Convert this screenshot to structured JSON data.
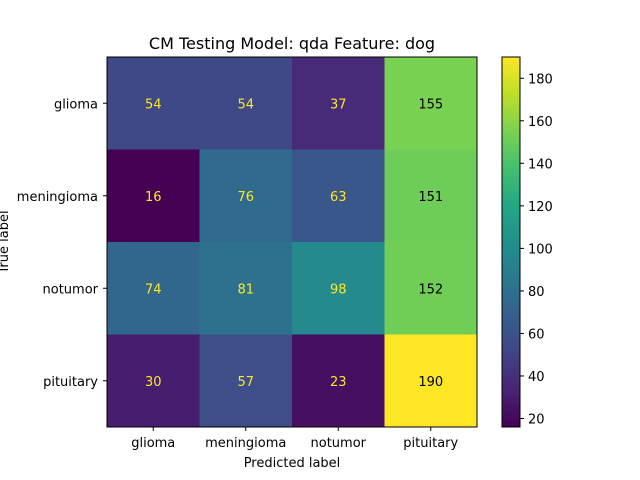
{
  "chart_data": {
    "type": "heatmap",
    "title": "CM Testing Model: qda Feature: dog",
    "xlabel": "Predicted label",
    "ylabel": "True label",
    "x_categories": [
      "glioma",
      "meningioma",
      "notumor",
      "pituitary"
    ],
    "y_categories": [
      "glioma",
      "meningioma",
      "notumor",
      "pituitary"
    ],
    "values": [
      [
        54,
        54,
        37,
        155
      ],
      [
        16,
        76,
        63,
        151
      ],
      [
        74,
        81,
        98,
        152
      ],
      [
        30,
        57,
        23,
        190
      ]
    ],
    "colormap": "viridis",
    "colorbar": {
      "min": 16,
      "max": 190,
      "ticks": [
        20,
        40,
        60,
        80,
        100,
        120,
        140,
        160,
        180
      ]
    },
    "grid": false,
    "text_colors": {
      "on_dark": "#fde725",
      "on_light": "#000000"
    }
  }
}
